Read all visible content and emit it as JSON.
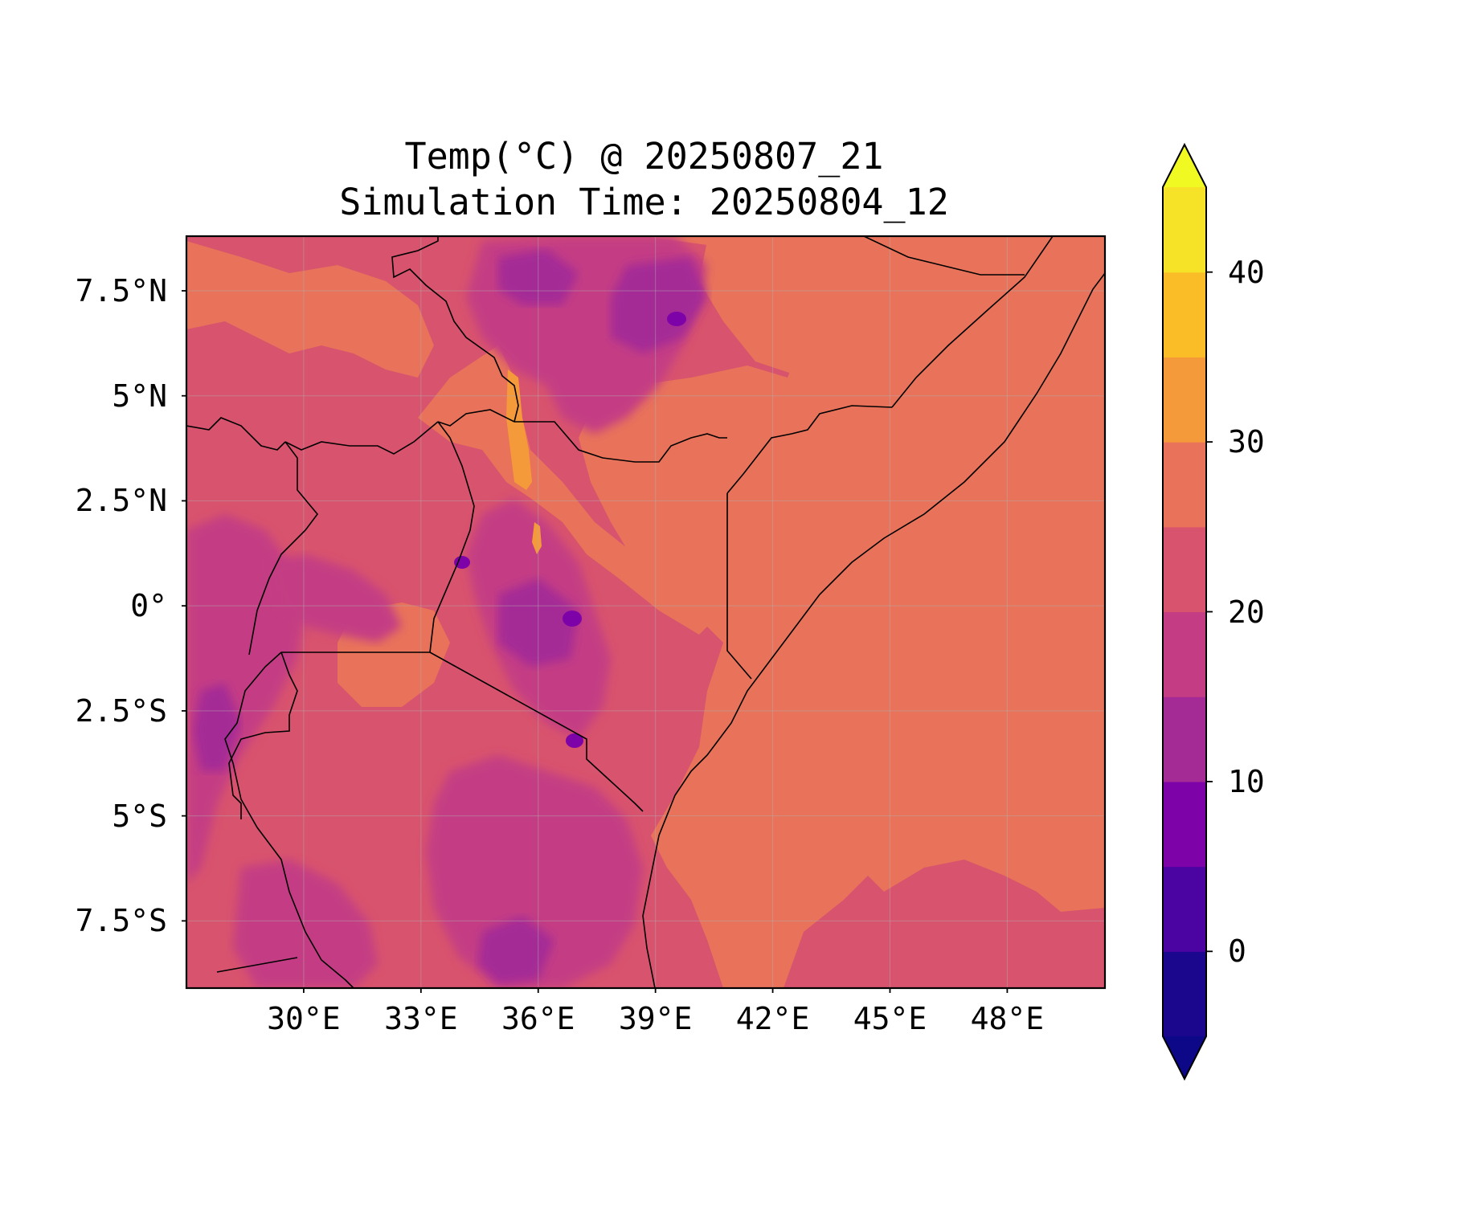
{
  "title": {
    "line1": "Temp(°C) @ 20250807_21",
    "line2": "Simulation Time: 20250804_12"
  },
  "map": {
    "lon_range": [
      27,
      50.5
    ],
    "lat_range": [
      -9.1,
      8.8
    ],
    "lat_ticks": [
      {
        "value": 7.5,
        "label": "7.5°N"
      },
      {
        "value": 5,
        "label": "5°N"
      },
      {
        "value": 2.5,
        "label": "2.5°N"
      },
      {
        "value": 0,
        "label": "0°"
      },
      {
        "value": -2.5,
        "label": "2.5°S"
      },
      {
        "value": -5,
        "label": "5°S"
      },
      {
        "value": -7.5,
        "label": "7.5°S"
      }
    ],
    "lon_ticks": [
      {
        "value": 30,
        "label": "30°E"
      },
      {
        "value": 33,
        "label": "33°E"
      },
      {
        "value": 36,
        "label": "36°E"
      },
      {
        "value": 39,
        "label": "39°E"
      },
      {
        "value": 42,
        "label": "42°E"
      },
      {
        "value": 45,
        "label": "45°E"
      },
      {
        "value": 48,
        "label": "48°E"
      }
    ],
    "gridlines": true,
    "variable": "Temp(°C)"
  },
  "colorbar": {
    "colormap": "plasma",
    "levels": [
      -5,
      0,
      5,
      10,
      15,
      20,
      25,
      30,
      35,
      40,
      45
    ],
    "extend": "both",
    "tick_labels": [
      {
        "value": 0,
        "label": "0"
      },
      {
        "value": 10,
        "label": "10"
      },
      {
        "value": 20,
        "label": "20"
      },
      {
        "value": 30,
        "label": "30"
      },
      {
        "value": 40,
        "label": "40"
      }
    ],
    "bin_colors": [
      "#1a078d",
      "#4b03a1",
      "#7d03a8",
      "#a42a96",
      "#c43c84",
      "#d8536d",
      "#e8735a",
      "#f59a3a",
      "#fbbd27",
      "#f6e226"
    ],
    "under_color": "#0d0887",
    "over_color": "#f0f921"
  }
}
